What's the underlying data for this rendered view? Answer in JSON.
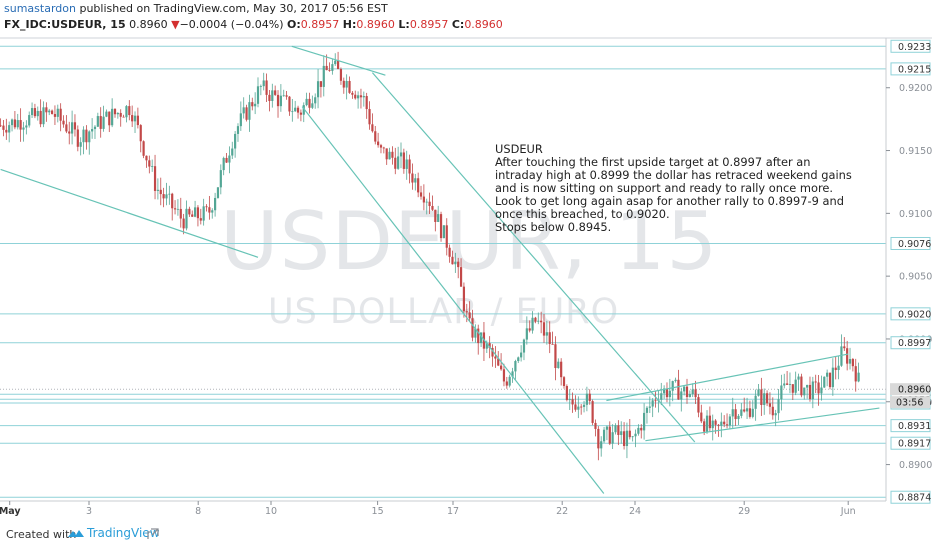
{
  "header": {
    "author": "sumastardon",
    "published_text": "published on TradingView.com, May 30, 2017 05:56 EST",
    "ticker": "FX_IDC:USDEUR, 15",
    "price": "0.8960",
    "change_arrow": "▼",
    "change": "−0.0004 (−0.04%)",
    "ohlc": [
      {
        "label": "O:",
        "value": "0.8957"
      },
      {
        "label": "H:",
        "value": "0.8960"
      },
      {
        "label": "L:",
        "value": "0.8957"
      },
      {
        "label": "C:",
        "value": "0.8960"
      }
    ]
  },
  "watermark": {
    "symbol": "USDEUR, 15",
    "name": "US DOLLAR / EURO"
  },
  "annotation": {
    "lines": [
      "USDEUR",
      "After touching the first upside target at 0.8997 after an",
      "intraday high at 0.8999 the dollar has retraced weekend gains",
      "and is now sitting on support and ready to rally once more.",
      "Look to get long again asap for another rally to 0.8997-9 and",
      "once this breached, to 0.9020.",
      "Stops below 0.8945."
    ]
  },
  "chart_data": {
    "type": "candlestick",
    "interval": "15",
    "x_tick_labels": [
      "May",
      "3",
      "8",
      "10",
      "15",
      "17",
      "22",
      "24",
      "29",
      "Jun"
    ],
    "y_tick_labels": [
      "0.9200",
      "0.9150",
      "0.9100",
      "0.9050",
      "0.9000",
      "0.8950",
      "0.8900"
    ],
    "ylim": [
      0.8871,
      0.9238
    ],
    "grid": false,
    "horizontal_levels": [
      0.9233,
      0.9215,
      0.9076,
      0.902,
      0.8997,
      0.8956,
      0.8952,
      0.8949,
      0.8931,
      0.8917,
      0.8874
    ],
    "last_price": {
      "value": 0.896,
      "label": "0.8960",
      "countdown": "03:56"
    },
    "path_key_points": [
      {
        "t": 0.0,
        "p": 0.917
      },
      {
        "t": 1.0,
        "p": 0.9175
      },
      {
        "t": 2.0,
        "p": 0.918
      },
      {
        "t": 3.0,
        "p": 0.916
      },
      {
        "t": 4.0,
        "p": 0.9175
      },
      {
        "t": 5.0,
        "p": 0.9185
      },
      {
        "t": 6.0,
        "p": 0.912
      },
      {
        "t": 7.0,
        "p": 0.9095
      },
      {
        "t": 8.0,
        "p": 0.91
      },
      {
        "t": 9.0,
        "p": 0.9165
      },
      {
        "t": 10.0,
        "p": 0.92
      },
      {
        "t": 11.5,
        "p": 0.918
      },
      {
        "t": 12.7,
        "p": 0.9218
      },
      {
        "t": 14.0,
        "p": 0.919
      },
      {
        "t": 14.5,
        "p": 0.915
      },
      {
        "t": 15.5,
        "p": 0.914
      },
      {
        "t": 16.5,
        "p": 0.911
      },
      {
        "t": 17.5,
        "p": 0.906
      },
      {
        "t": 18.0,
        "p": 0.901
      },
      {
        "t": 18.8,
        "p": 0.899
      },
      {
        "t": 19.4,
        "p": 0.8965
      },
      {
        "t": 20.0,
        "p": 0.8995
      },
      {
        "t": 20.6,
        "p": 0.9015
      },
      {
        "t": 21.2,
        "p": 0.8995
      },
      {
        "t": 21.8,
        "p": 0.8945
      },
      {
        "t": 22.4,
        "p": 0.8955
      },
      {
        "t": 22.7,
        "p": 0.8945
      },
      {
        "t": 23.0,
        "p": 0.892
      },
      {
        "t": 23.6,
        "p": 0.8925
      },
      {
        "t": 24.3,
        "p": 0.8918
      },
      {
        "t": 24.8,
        "p": 0.894
      },
      {
        "t": 25.3,
        "p": 0.8958
      },
      {
        "t": 26.0,
        "p": 0.896
      },
      {
        "t": 26.7,
        "p": 0.8955
      },
      {
        "t": 27.0,
        "p": 0.8935
      },
      {
        "t": 27.5,
        "p": 0.8925
      },
      {
        "t": 28.2,
        "p": 0.8945
      },
      {
        "t": 28.6,
        "p": 0.894
      },
      {
        "t": 29.2,
        "p": 0.8955
      },
      {
        "t": 29.7,
        "p": 0.8945
      },
      {
        "t": 30.3,
        "p": 0.8965
      },
      {
        "t": 30.8,
        "p": 0.8962
      },
      {
        "t": 31.3,
        "p": 0.8958
      },
      {
        "t": 31.9,
        "p": 0.8968
      },
      {
        "t": 32.4,
        "p": 0.899
      },
      {
        "t": 32.8,
        "p": 0.898
      },
      {
        "t": 33.1,
        "p": 0.896
      }
    ],
    "trendlines": [
      {
        "name": "falling-resistance",
        "from": {
          "t": 11.2,
          "p": 0.9233
        },
        "to": {
          "t": 14.8,
          "p": 0.921
        }
      },
      {
        "name": "lower-left-support",
        "from": {
          "t": 0.0,
          "p": 0.9135
        },
        "to": {
          "t": 9.9,
          "p": 0.9065
        }
      },
      {
        "name": "channel-upper",
        "from": {
          "t": 14.3,
          "p": 0.9212
        },
        "to": {
          "t": 26.7,
          "p": 0.8918
        }
      },
      {
        "name": "channel-lower",
        "from": {
          "t": 11.6,
          "p": 0.9185
        },
        "to": {
          "t": 23.2,
          "p": 0.8877
        }
      },
      {
        "name": "rising-upper",
        "from": {
          "t": 23.3,
          "p": 0.8951
        },
        "to": {
          "t": 32.6,
          "p": 0.8988
        }
      },
      {
        "name": "rising-lower",
        "from": {
          "t": 24.8,
          "p": 0.8919
        },
        "to": {
          "t": 33.8,
          "p": 0.8945
        }
      }
    ]
  },
  "footer": {
    "created_with": "Created with",
    "brand": "TradingView"
  },
  "colors": {
    "up": "#53a695",
    "down": "#c24848",
    "level": "#8fd2d8",
    "trend": "#67c3b6",
    "axis": "#8a8f96",
    "badge": "#d9d9d9",
    "accent": "#2a9dd8"
  }
}
